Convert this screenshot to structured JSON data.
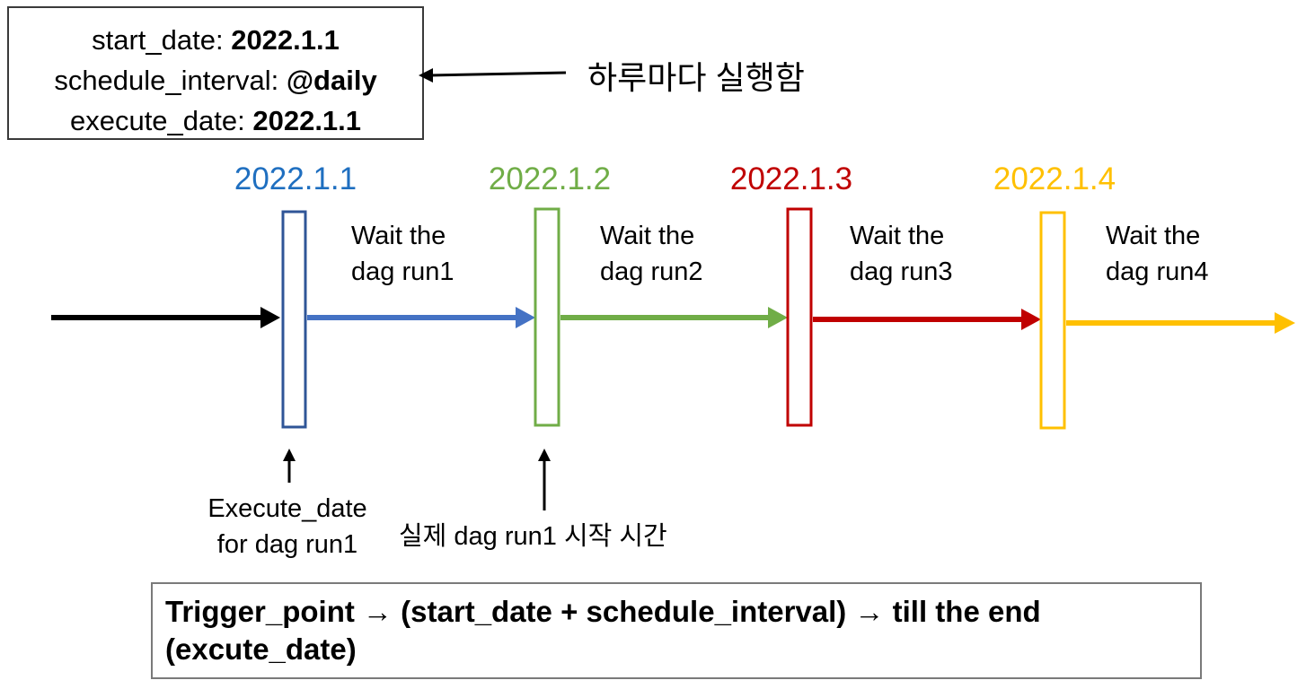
{
  "config": {
    "start_date_label": "start_date: ",
    "start_date_value": "2022.1.1",
    "schedule_interval_label": "schedule_interval: ",
    "schedule_interval_value": "@daily",
    "execute_date_label": "execute_date: ",
    "execute_date_value": "2022.1.1"
  },
  "interval_note": "하루마다 실행함",
  "timeline": {
    "dates": [
      {
        "label": "2022.1.1",
        "color": "#1f6fc0"
      },
      {
        "label": "2022.1.2",
        "color": "#70ad47"
      },
      {
        "label": "2022.1.3",
        "color": "#c00000"
      },
      {
        "label": "2022.1.4",
        "color": "#ffc000"
      }
    ],
    "waits": [
      {
        "line1": "Wait the",
        "line2": "dag run1"
      },
      {
        "line1": "Wait the",
        "line2": "dag run2"
      },
      {
        "line1": "Wait the",
        "line2": "dag run3"
      },
      {
        "line1": "Wait the",
        "line2": "dag run4"
      }
    ],
    "colors": {
      "start": "#000000",
      "blue": "#4472c4",
      "green": "#70ad47",
      "red": "#c00000",
      "yellow": "#ffc000",
      "box_blue": "#2f5597"
    }
  },
  "annotations": {
    "execute_date_line1": "Execute_date",
    "execute_date_line2": "for dag run1",
    "actual_start": "실제 dag run1 시작 시간"
  },
  "formula": {
    "line1": "Trigger_point → (start_date + schedule_interval) → till the end",
    "line2": "(excute_date)"
  }
}
